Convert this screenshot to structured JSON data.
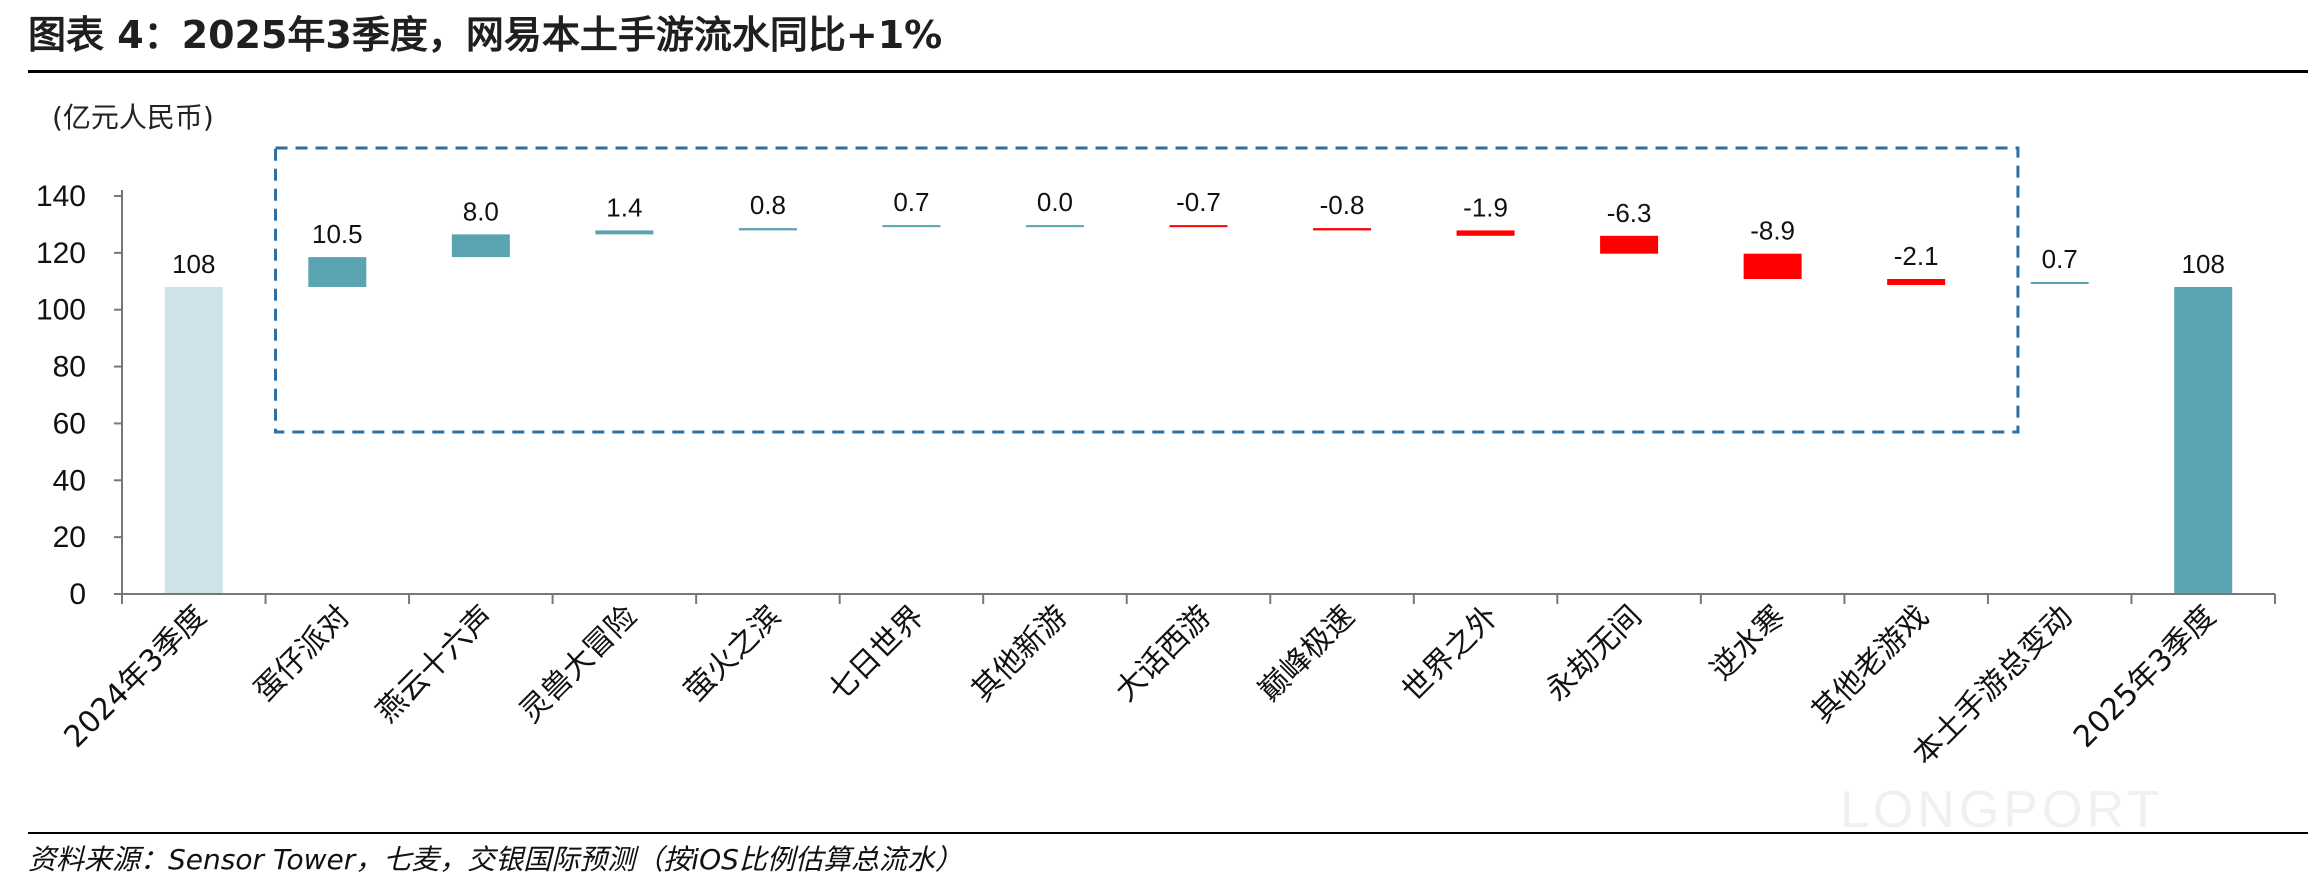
{
  "title": "图表 4：2025年3季度，网易本土手游流水同比+1%",
  "unit": "(亿元人民币)",
  "source": "资料来源：Sensor Tower，七麦，交银国际预测（按iOS比例估算总流水）",
  "watermark": "LONGPORT",
  "colors": {
    "start_total": "#cfe2e7",
    "end_total": "#5aa3b0",
    "increase": "#5aa3b0",
    "decrease": "#ff0000",
    "box": "#2e6fa3"
  },
  "chart_data": {
    "type": "bar",
    "subtype": "waterfall",
    "categories": [
      "2024年3季度",
      "蛋仔派对",
      "燕云十六声",
      "灵兽大冒险",
      "萤火之滨",
      "七日世界",
      "其他新游",
      "大话西游",
      "巅峰极速",
      "世界之外",
      "永劫无间",
      "逆水寒",
      "其他老游戏",
      "本土手游总变动",
      "2025年3季度"
    ],
    "values": [
      108,
      10.5,
      8.0,
      1.4,
      0.8,
      0.7,
      0.0,
      -0.7,
      -0.8,
      -1.9,
      -6.3,
      -8.9,
      -2.1,
      0.7,
      108
    ],
    "labels": [
      "108",
      "10.5",
      "8.0",
      "1.4",
      "0.8",
      "0.7",
      "0.0",
      "-0.7",
      "-0.8",
      "-1.9",
      "-6.3",
      "-8.9",
      "-2.1",
      "0.7",
      "108"
    ],
    "kinds": [
      "total",
      "delta",
      "delta",
      "delta",
      "delta",
      "delta",
      "delta",
      "delta",
      "delta",
      "delta",
      "delta",
      "delta",
      "delta",
      "delta",
      "total"
    ],
    "ylim": [
      0,
      140
    ],
    "yticks": [
      0,
      20,
      40,
      60,
      80,
      100,
      120,
      140
    ],
    "grid": false,
    "dashed_box_from_category": 1,
    "dashed_box_to_category": 12
  }
}
